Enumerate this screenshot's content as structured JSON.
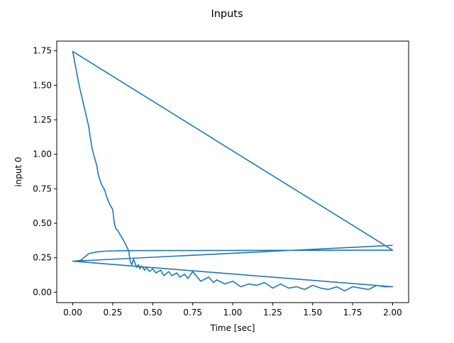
{
  "title": "Inputs",
  "chart_data": {
    "type": "line",
    "title": "Inputs",
    "xlabel": "Time [sec]",
    "ylabel": "input 0",
    "xlim": [
      -0.1,
      2.1
    ],
    "ylim": [
      -0.075,
      1.82
    ],
    "grid": false,
    "legend": "none",
    "colors": {
      "line": "#1f77b4",
      "axes": "#000000",
      "background": "#ffffff"
    },
    "x_ticks": [
      0.0,
      0.25,
      0.5,
      0.75,
      1.0,
      1.25,
      1.5,
      1.75,
      2.0
    ],
    "x_tick_labels": [
      "0.00",
      "0.25",
      "0.50",
      "0.75",
      "1.00",
      "1.25",
      "1.50",
      "1.75",
      "2.00"
    ],
    "y_ticks": [
      0.0,
      0.25,
      0.5,
      0.75,
      1.0,
      1.25,
      1.5,
      1.75
    ],
    "y_tick_labels": [
      "0.00",
      "0.25",
      "0.50",
      "0.75",
      "1.00",
      "1.25",
      "1.50",
      "1.75"
    ],
    "series": [
      {
        "x": [
          0.0,
          0.02,
          0.05,
          0.08,
          0.1,
          0.15,
          0.2,
          0.3,
          0.5,
          1.0,
          1.5,
          2.0,
          0.0,
          2.0,
          0.0,
          0.02,
          0.04,
          0.06,
          0.08,
          0.1,
          0.11,
          0.12,
          0.13,
          0.15,
          0.16,
          0.18,
          0.2,
          0.21,
          0.22,
          0.23,
          0.24,
          0.25,
          0.26,
          0.27,
          0.28,
          0.29,
          0.3,
          0.31,
          0.33,
          0.35,
          0.36,
          0.37,
          0.38,
          0.4,
          0.41,
          0.42,
          0.43,
          0.45,
          0.46,
          0.48,
          0.5,
          0.52,
          0.55,
          0.57,
          0.6,
          0.62,
          0.65,
          0.67,
          0.7,
          0.72,
          0.75,
          0.8,
          0.85,
          0.88,
          0.9,
          0.95,
          1.0,
          1.05,
          1.1,
          1.15,
          1.2,
          1.25,
          1.3,
          1.35,
          1.4,
          1.45,
          1.5,
          1.55,
          1.6,
          1.65,
          1.7,
          1.75,
          1.8,
          1.85,
          1.9,
          1.95,
          2.0,
          2.0,
          0.0,
          2.0
        ],
        "y": [
          0.225,
          0.226,
          0.232,
          0.26,
          0.28,
          0.292,
          0.298,
          0.301,
          0.302,
          0.303,
          0.304,
          0.305,
          1.745,
          0.305,
          1.745,
          1.62,
          1.5,
          1.4,
          1.3,
          1.2,
          1.12,
          1.05,
          1.0,
          0.92,
          0.85,
          0.78,
          0.74,
          0.7,
          0.67,
          0.64,
          0.62,
          0.6,
          0.5,
          0.46,
          0.45,
          0.43,
          0.41,
          0.39,
          0.35,
          0.3,
          0.22,
          0.2,
          0.24,
          0.18,
          0.2,
          0.17,
          0.19,
          0.16,
          0.18,
          0.15,
          0.17,
          0.14,
          0.16,
          0.12,
          0.15,
          0.12,
          0.14,
          0.11,
          0.13,
          0.1,
          0.15,
          0.08,
          0.11,
          0.07,
          0.09,
          0.06,
          0.08,
          0.04,
          0.06,
          0.05,
          0.07,
          0.03,
          0.06,
          0.03,
          0.04,
          0.02,
          0.05,
          0.03,
          0.02,
          0.04,
          0.01,
          0.04,
          0.03,
          0.02,
          0.05,
          0.04,
          0.04,
          0.04,
          0.225,
          0.34
        ]
      }
    ]
  }
}
